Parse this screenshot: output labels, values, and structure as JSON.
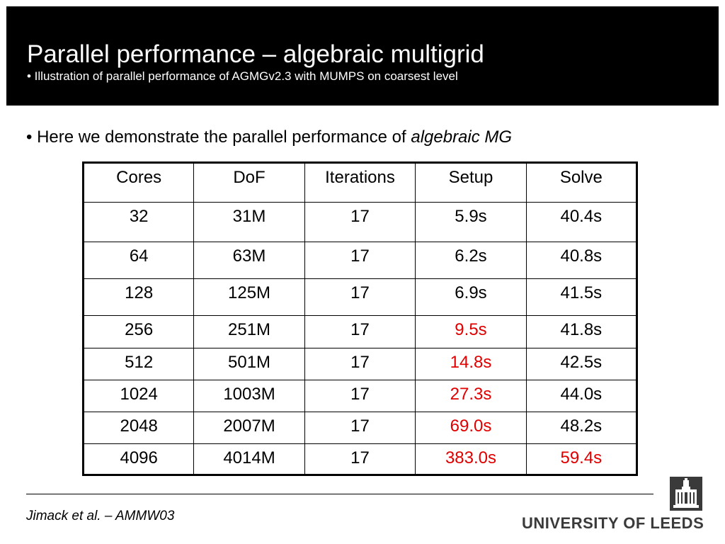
{
  "header": {
    "title": "Parallel performance – algebraic multigrid",
    "subtitle": "• Illustration of parallel performance of AGMGv2.3 with MUMPS on coarsest level"
  },
  "intro": {
    "prefix": "• Here we demonstrate the parallel performance of ",
    "emphasis": "algebraic MG"
  },
  "table": {
    "headers": [
      "Cores",
      "DoF",
      "Iterations",
      "Setup",
      "Solve"
    ],
    "rows": [
      [
        "32",
        "31M",
        "17",
        "5.9s",
        "40.4s"
      ],
      [
        "64",
        "63M",
        "17",
        "6.2s",
        "40.8s"
      ],
      [
        "128",
        "125M",
        "17",
        "6.9s",
        "41.5s"
      ],
      [
        "256",
        "251M",
        "17",
        "9.5s",
        "41.8s"
      ],
      [
        "512",
        "501M",
        "17",
        "14.8s",
        "42.5s"
      ],
      [
        "1024",
        "1003M",
        "17",
        "27.3s",
        "44.0s"
      ],
      [
        "2048",
        "2007M",
        "17",
        "69.0s",
        "48.2s"
      ],
      [
        "4096",
        "4014M",
        "17",
        "383.0s",
        "59.4s"
      ]
    ],
    "highlight_color": "#e00000"
  },
  "footer": {
    "citation": "Jimack et al. – AMMW03",
    "logo_text": "UNIVERSITY OF LEEDS",
    "logo_icon": "university-crest-icon"
  }
}
